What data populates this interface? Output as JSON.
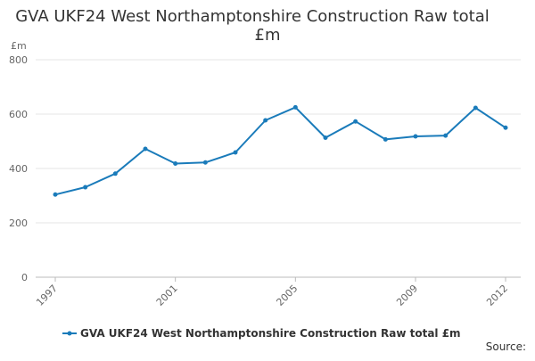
{
  "chart_data": {
    "type": "line",
    "title_lines": [
      "GVA UKF24 West Northamptonshire Construction Raw total",
      "£m"
    ],
    "y_unit_label": "£m",
    "x": [
      1997,
      1998,
      1999,
      2000,
      2001,
      2002,
      2003,
      2004,
      2005,
      2006,
      2007,
      2008,
      2009,
      2010,
      2011,
      2012
    ],
    "x_tick_labels": [
      "1997",
      "2001",
      "2005",
      "2009",
      "2012"
    ],
    "y_ticks": [
      0,
      200,
      400,
      600,
      800
    ],
    "ylim": [
      0,
      800
    ],
    "grid": true,
    "legend_position": "bottom",
    "series": [
      {
        "name": "GVA UKF24 West Northamptonshire Construction Raw total £m",
        "color": "#1a7bba",
        "values": [
          304,
          331,
          381,
          472,
          418,
          422,
          459,
          577,
          625,
          513,
          573,
          507,
          518,
          521,
          623,
          550
        ]
      }
    ]
  },
  "footer": {
    "source_label": "Source:"
  }
}
